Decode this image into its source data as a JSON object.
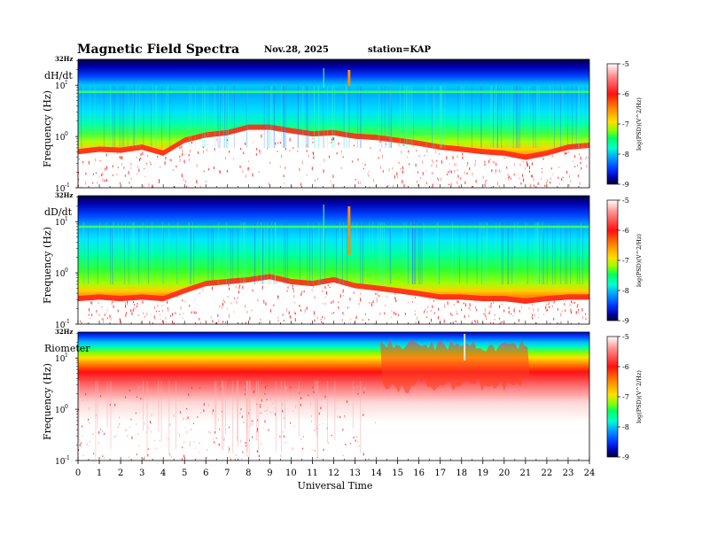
{
  "header": {
    "title": "Magnetic  Field  Spectra",
    "date": "Nov.28, 2025",
    "station": "station=KAP"
  },
  "colors": {
    "colormap": [
      "#000050",
      "#0000c8",
      "#0050ff",
      "#00b4ff",
      "#00ffc8",
      "#00ff50",
      "#50ff00",
      "#c8ff00",
      "#ffe000",
      "#ff8000",
      "#ff2000",
      "#ff8080",
      "#ffffff"
    ]
  },
  "chart_data": [
    {
      "type": "heatmap",
      "panel_label": "dH/dt",
      "ylabel": "Frequency  (Hz)",
      "top_label": "32Hz",
      "yticks": [
        {
          "value": 10,
          "base": "10",
          "exp": "1"
        },
        {
          "value": 1,
          "base": "10",
          "exp": "0"
        },
        {
          "value": 0.1,
          "base": "10",
          "exp": "-1"
        }
      ],
      "ylim": [
        0.1,
        32
      ],
      "yscale": "log",
      "xlim": [
        0,
        24
      ],
      "colorbar": {
        "label": "log(PSD)(V^2/Hz)",
        "ticks": [
          "-5",
          "-6",
          "-7",
          "-8",
          "-9"
        ],
        "range": [
          -9,
          -5
        ]
      },
      "red_edge_freq_by_hour": [
        0.45,
        0.5,
        0.48,
        0.55,
        0.42,
        0.75,
        0.95,
        1.05,
        1.35,
        1.35,
        1.15,
        1.0,
        1.05,
        0.9,
        0.85,
        0.75,
        0.65,
        0.55,
        0.5,
        0.45,
        0.42,
        0.35,
        0.42,
        0.55,
        0.6
      ]
    },
    {
      "type": "heatmap",
      "panel_label": "dD/dt",
      "ylabel": "Frequency  (Hz)",
      "top_label": "32Hz",
      "yticks": [
        {
          "value": 10,
          "base": "10",
          "exp": "1"
        },
        {
          "value": 1,
          "base": "10",
          "exp": "0"
        },
        {
          "value": 0.1,
          "base": "10",
          "exp": "-1"
        }
      ],
      "ylim": [
        0.1,
        32
      ],
      "yscale": "log",
      "xlim": [
        0,
        24
      ],
      "colorbar": {
        "label": "log(PSD)(V^2/Hz)",
        "ticks": [
          "-5",
          "-6",
          "-7",
          "-8",
          "-9"
        ],
        "range": [
          -9,
          -5
        ]
      },
      "red_edge_freq_by_hour": [
        0.28,
        0.3,
        0.28,
        0.3,
        0.28,
        0.4,
        0.55,
        0.6,
        0.65,
        0.75,
        0.6,
        0.55,
        0.65,
        0.5,
        0.45,
        0.4,
        0.35,
        0.3,
        0.3,
        0.28,
        0.28,
        0.25,
        0.28,
        0.3,
        0.3
      ]
    },
    {
      "type": "heatmap",
      "panel_label": "Riometer",
      "ylabel": "Frequency  (Hz)",
      "top_label": "32Hz",
      "yticks": [
        {
          "value": 10,
          "base": "10",
          "exp": "1"
        },
        {
          "value": 1,
          "base": "10",
          "exp": "0"
        },
        {
          "value": 0.1,
          "base": "10",
          "exp": "-1"
        }
      ],
      "ylim": [
        0.1,
        32
      ],
      "yscale": "log",
      "xlim": [
        0,
        24
      ],
      "colorbar": {
        "label": "log(PSD)(V^2/Hz)",
        "ticks": [
          "-5",
          "-6",
          "-7",
          "-8",
          "-9"
        ],
        "range": [
          -9,
          -5
        ]
      },
      "red_edge_freq_by_hour": [
        4,
        4,
        4,
        4,
        4,
        4,
        4,
        4,
        4,
        4,
        4,
        4,
        4,
        4,
        4,
        3.2,
        3.0,
        3.0,
        2.6,
        3.2,
        3.3,
        3.5,
        4,
        4,
        4
      ]
    }
  ],
  "x_axis": {
    "label": "Universal  Time",
    "ticks": [
      "0",
      "1",
      "2",
      "3",
      "4",
      "5",
      "6",
      "7",
      "8",
      "9",
      "10",
      "11",
      "12",
      "13",
      "14",
      "15",
      "16",
      "17",
      "18",
      "19",
      "20",
      "21",
      "22",
      "23",
      "24"
    ]
  }
}
